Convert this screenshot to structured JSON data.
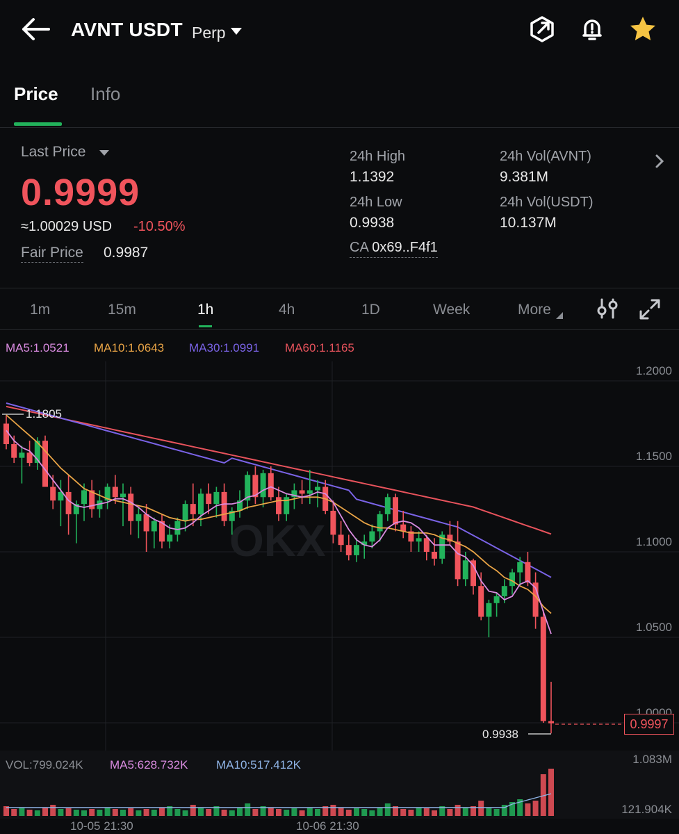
{
  "header": {
    "symbol": "AVNT USDT",
    "contract_type": "Perp",
    "icons": [
      "back-arrow-icon",
      "share-icon",
      "price-alert-bell-icon",
      "favorite-star-icon"
    ]
  },
  "tabs": [
    {
      "label": "Price",
      "active": true
    },
    {
      "label": "Info",
      "active": false
    }
  ],
  "ticker": {
    "last_price_label": "Last Price",
    "last_price": "0.9999",
    "approx_usd": "≈1.00029 USD",
    "change_pct": "-10.50%",
    "fair_price_label": "Fair Price",
    "fair_price": "0.9987",
    "high_label": "24h High",
    "high": "1.1392",
    "low_label": "24h Low",
    "low": "0.9938",
    "vol_base_label": "24h Vol(AVNT)",
    "vol_base": "9.381M",
    "vol_quote_label": "24h Vol(USDT)",
    "vol_quote": "10.137M",
    "ca_label": "CA",
    "ca_value": "0x69..F4f1"
  },
  "intervals": [
    {
      "label": "1m",
      "active": false
    },
    {
      "label": "15m",
      "active": false
    },
    {
      "label": "1h",
      "active": true
    },
    {
      "label": "4h",
      "active": false
    },
    {
      "label": "1D",
      "active": false
    },
    {
      "label": "Week",
      "active": false
    },
    {
      "label": "More",
      "active": false
    }
  ],
  "ma_legend": {
    "ma5": "MA5:1.0521",
    "ma10": "MA10:1.0643",
    "ma30": "MA30:1.0991",
    "ma60": "MA60:1.1165"
  },
  "colors": {
    "up": "#22b25b",
    "down": "#f0545c",
    "ma5": "#d98be0",
    "ma10": "#e9a446",
    "ma30": "#7a63e6",
    "ma60": "#e8535c",
    "accent": "#22b25b",
    "star": "#f6c443"
  },
  "price_axis": [
    "1.2000",
    "1.1500",
    "1.1000",
    "1.0500",
    "1.0000"
  ],
  "markers": {
    "high_marker": "1.1805",
    "low_marker": "0.9938",
    "current_price_tag": "0.9997"
  },
  "volume": {
    "vol": "VOL:799.024K",
    "ma5": "MA5:628.732K",
    "ma10": "MA10:517.412K",
    "axis_top": "1.083M",
    "axis_bottom": "121.904K"
  },
  "dates": [
    "10-05 21:30",
    "10-06 21:30"
  ],
  "watermark": "OKX",
  "chart_data": {
    "type": "candlestick",
    "ylim": [
      0.985,
      1.2
    ],
    "candles": [
      [
        1.175,
        1.18,
        1.16,
        1.163
      ],
      [
        1.163,
        1.168,
        1.152,
        1.155
      ],
      [
        1.155,
        1.162,
        1.14,
        1.158
      ],
      [
        1.158,
        1.165,
        1.15,
        1.152
      ],
      [
        1.152,
        1.167,
        1.148,
        1.165
      ],
      [
        1.165,
        1.168,
        1.14,
        1.138
      ],
      [
        1.138,
        1.145,
        1.125,
        1.13
      ],
      [
        1.13,
        1.142,
        1.115,
        1.135
      ],
      [
        1.135,
        1.145,
        1.11,
        1.122
      ],
      [
        1.122,
        1.13,
        1.105,
        1.128
      ],
      [
        1.128,
        1.14,
        1.118,
        1.136
      ],
      [
        1.136,
        1.142,
        1.12,
        1.125
      ],
      [
        1.125,
        1.136,
        1.12,
        1.13
      ],
      [
        1.13,
        1.14,
        1.125,
        1.138
      ],
      [
        1.138,
        1.145,
        1.128,
        1.132
      ],
      [
        1.132,
        1.14,
        1.115,
        1.134
      ],
      [
        1.134,
        1.138,
        1.11,
        1.118
      ],
      [
        1.118,
        1.126,
        1.108,
        1.122
      ],
      [
        1.122,
        1.128,
        1.1,
        1.112
      ],
      [
        1.112,
        1.12,
        1.102,
        1.118
      ],
      [
        1.118,
        1.122,
        1.102,
        1.106
      ],
      [
        1.106,
        1.116,
        1.102,
        1.11
      ],
      [
        1.11,
        1.12,
        1.106,
        1.118
      ],
      [
        1.118,
        1.13,
        1.112,
        1.128
      ],
      [
        1.128,
        1.14,
        1.115,
        1.122
      ],
      [
        1.122,
        1.137,
        1.115,
        1.134
      ],
      [
        1.134,
        1.14,
        1.122,
        1.128
      ],
      [
        1.128,
        1.138,
        1.12,
        1.135
      ],
      [
        1.135,
        1.14,
        1.115,
        1.118
      ],
      [
        1.118,
        1.126,
        1.11,
        1.124
      ],
      [
        1.124,
        1.136,
        1.12,
        1.13
      ],
      [
        1.13,
        1.147,
        1.125,
        1.145
      ],
      [
        1.145,
        1.15,
        1.128,
        1.132
      ],
      [
        1.132,
        1.148,
        1.126,
        1.146
      ],
      [
        1.146,
        1.15,
        1.13,
        1.132
      ],
      [
        1.132,
        1.138,
        1.118,
        1.122
      ],
      [
        1.122,
        1.134,
        1.118,
        1.132
      ],
      [
        1.132,
        1.14,
        1.125,
        1.136
      ],
      [
        1.136,
        1.142,
        1.128,
        1.134
      ],
      [
        1.134,
        1.148,
        1.128,
        1.136
      ],
      [
        1.136,
        1.142,
        1.126,
        1.138
      ],
      [
        1.138,
        1.142,
        1.122,
        1.124
      ],
      [
        1.124,
        1.13,
        1.105,
        1.11
      ],
      [
        1.11,
        1.118,
        1.1,
        1.104
      ],
      [
        1.104,
        1.11,
        1.095,
        1.098
      ],
      [
        1.098,
        1.108,
        1.094,
        1.104
      ],
      [
        1.104,
        1.11,
        1.096,
        1.106
      ],
      [
        1.106,
        1.116,
        1.102,
        1.112
      ],
      [
        1.112,
        1.124,
        1.106,
        1.122
      ],
      [
        1.122,
        1.134,
        1.118,
        1.132
      ],
      [
        1.132,
        1.134,
        1.112,
        1.116
      ],
      [
        1.116,
        1.124,
        1.108,
        1.112
      ],
      [
        1.112,
        1.115,
        1.1,
        1.106
      ],
      [
        1.106,
        1.112,
        1.1,
        1.108
      ],
      [
        1.108,
        1.11,
        1.095,
        1.1
      ],
      [
        1.1,
        1.108,
        1.092,
        1.096
      ],
      [
        1.096,
        1.112,
        1.093,
        1.11
      ],
      [
        1.11,
        1.118,
        1.104,
        1.106
      ],
      [
        1.106,
        1.118,
        1.08,
        1.084
      ],
      [
        1.084,
        1.1,
        1.08,
        1.095
      ],
      [
        1.095,
        1.096,
        1.075,
        1.08
      ],
      [
        1.08,
        1.088,
        1.06,
        1.062
      ],
      [
        1.062,
        1.072,
        1.05,
        1.07
      ],
      [
        1.07,
        1.076,
        1.062,
        1.074
      ],
      [
        1.074,
        1.084,
        1.07,
        1.08
      ],
      [
        1.08,
        1.09,
        1.075,
        1.088
      ],
      [
        1.088,
        1.097,
        1.08,
        1.094
      ],
      [
        1.094,
        1.1,
        1.08,
        1.082
      ],
      [
        1.082,
        1.088,
        1.055,
        1.062
      ],
      [
        1.062,
        1.066,
        1.0,
        1.001
      ],
      [
        1.001,
        1.024,
        0.9938,
        0.9997
      ]
    ],
    "ma5": [
      1.171,
      1.165,
      1.161,
      1.159,
      1.154,
      1.148,
      1.142,
      1.136,
      1.13,
      1.127,
      1.126,
      1.127,
      1.128,
      1.129,
      1.131,
      1.131,
      1.129,
      1.126,
      1.122,
      1.119,
      1.117,
      1.114,
      1.113,
      1.114,
      1.117,
      1.121,
      1.124,
      1.127,
      1.128,
      1.128,
      1.129,
      1.132,
      1.133,
      1.136,
      1.138,
      1.136,
      1.134,
      1.133,
      1.132,
      1.133,
      1.135,
      1.134,
      1.129,
      1.121,
      1.113,
      1.107,
      1.104,
      1.103,
      1.107,
      1.114,
      1.117,
      1.118,
      1.117,
      1.114,
      1.109,
      1.104,
      1.104,
      1.104,
      1.099,
      1.097,
      1.092,
      1.083,
      1.077,
      1.076,
      1.072,
      1.074,
      1.081,
      1.083,
      1.079,
      1.065,
      1.052
    ],
    "ma10": [
      1.18,
      1.176,
      1.172,
      1.168,
      1.164,
      1.159,
      1.154,
      1.149,
      1.145,
      1.141,
      1.137,
      1.135,
      1.133,
      1.131,
      1.13,
      1.129,
      1.128,
      1.127,
      1.126,
      1.124,
      1.122,
      1.12,
      1.119,
      1.118,
      1.119,
      1.119,
      1.12,
      1.121,
      1.122,
      1.123,
      1.124,
      1.126,
      1.127,
      1.128,
      1.129,
      1.13,
      1.13,
      1.131,
      1.132,
      1.132,
      1.132,
      1.131,
      1.129,
      1.126,
      1.123,
      1.12,
      1.117,
      1.115,
      1.114,
      1.114,
      1.113,
      1.112,
      1.111,
      1.111,
      1.111,
      1.11,
      1.108,
      1.107,
      1.105,
      1.103,
      1.1,
      1.096,
      1.092,
      1.089,
      1.085,
      1.083,
      1.08,
      1.078,
      1.074,
      1.068,
      1.064
    ]
  }
}
